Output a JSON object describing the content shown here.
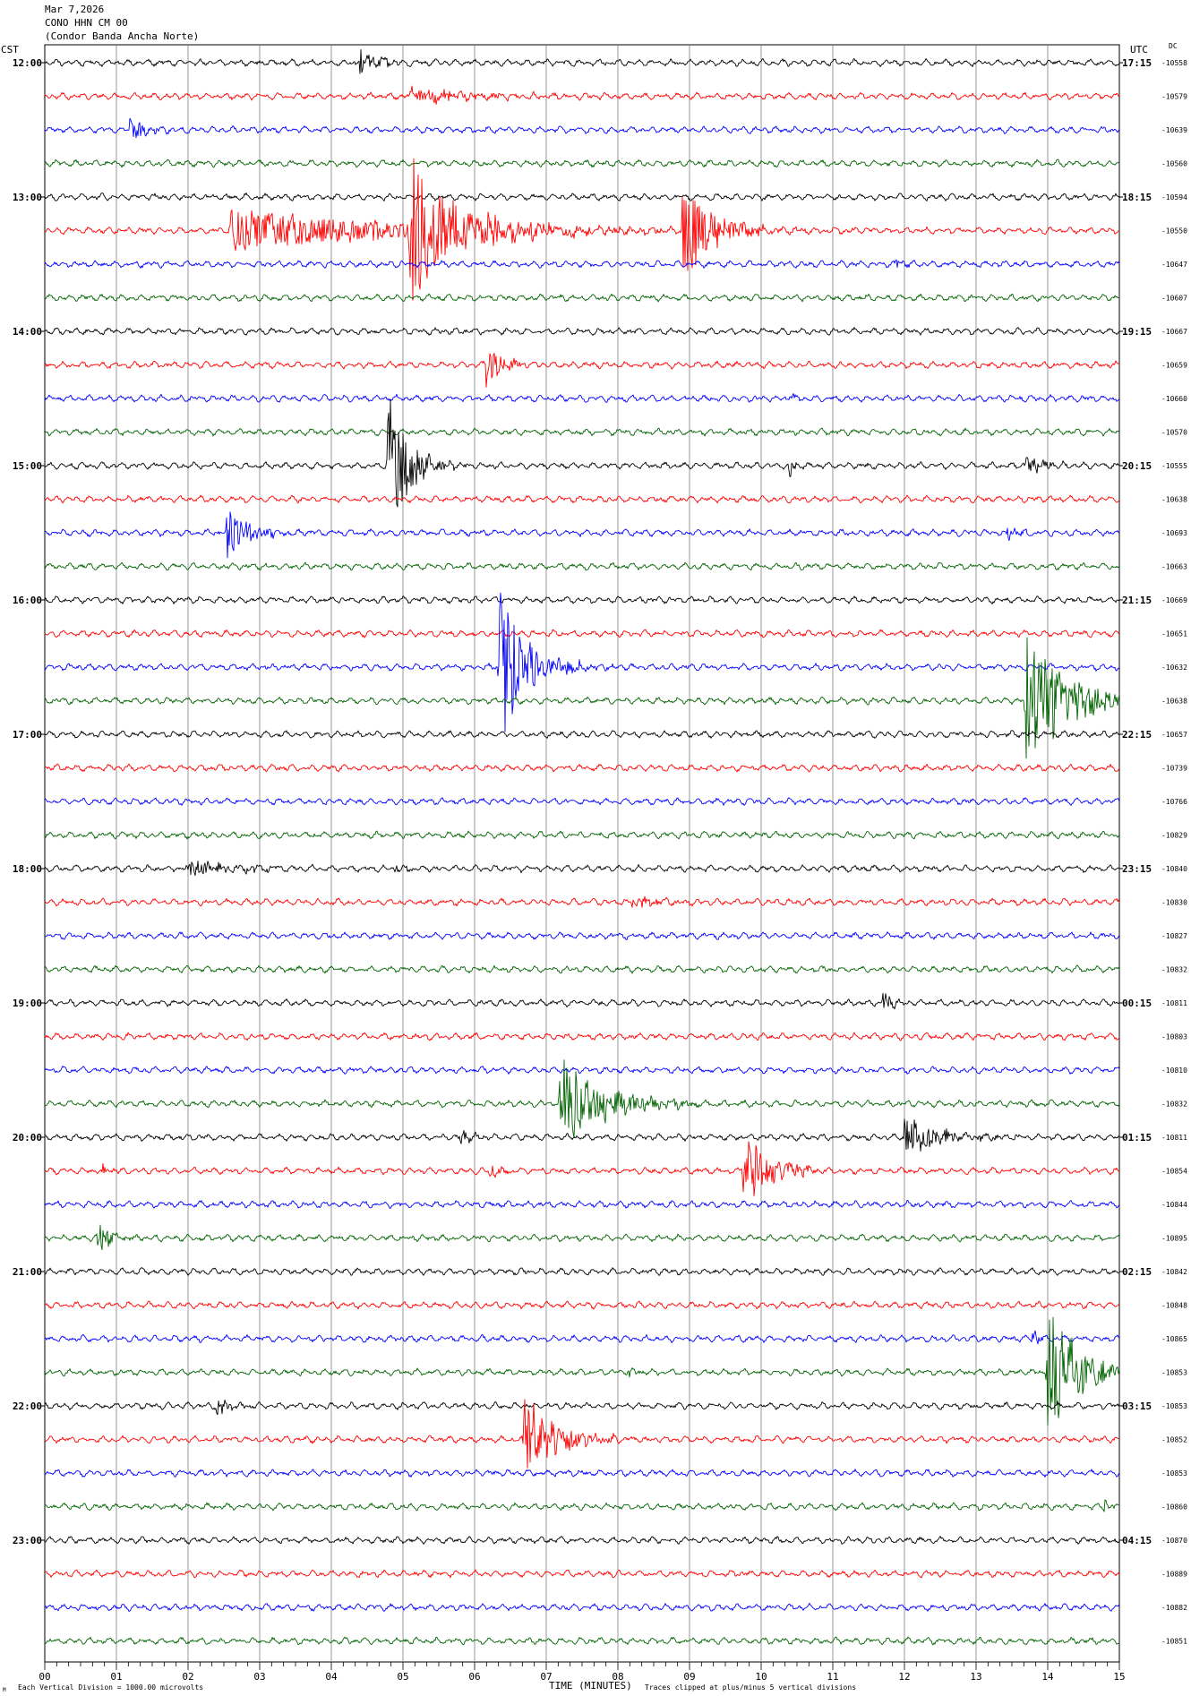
{
  "header": {
    "date": "Mar 7,2026",
    "station": "CONO HHN CM 00",
    "site": "(Condor Banda Ancha Norte)"
  },
  "left_axis_label": "CST",
  "right_axis_label": "UTC",
  "dc_label": "DC",
  "footer": {
    "scale_note": "Each Vertical Division = 1000.00 microvolts",
    "xlabel": "TIME (MINUTES)",
    "clip_note": "Traces clipped at plus/minus 5 vertical divisions",
    "corner_mark": "M"
  },
  "colors": {
    "trace_cycle": [
      "#000000",
      "#ff0000",
      "#0000ff",
      "#006400"
    ],
    "grid": "#808080",
    "frame": "#000000"
  },
  "chart_data": {
    "type": "line",
    "description_kind": "helicorder",
    "xlabel": "TIME (MINUTES)",
    "xlim": [
      0,
      15
    ],
    "x_ticks": [
      "00",
      "01",
      "02",
      "03",
      "04",
      "05",
      "06",
      "07",
      "08",
      "09",
      "10",
      "11",
      "12",
      "13",
      "14",
      "15"
    ],
    "minutes_per_line": 15,
    "line_count": 48,
    "left_hour_labels": [
      "12:00",
      "13:00",
      "14:00",
      "15:00",
      "16:00",
      "17:00",
      "18:00",
      "19:00",
      "20:00",
      "21:00",
      "22:00",
      "23:00"
    ],
    "right_hour_labels": [
      "17:15",
      "18:15",
      "19:15",
      "20:15",
      "21:15",
      "22:15",
      "23:15",
      "00:15",
      "01:15",
      "02:15",
      "03:15",
      "04:15"
    ],
    "dc_offsets": [
      "-10558",
      "-10579",
      "-10639",
      "-10560",
      "-10594",
      "-10550",
      "-10647",
      "-10607",
      "-10667",
      "-10659",
      "-10660",
      "-10570",
      "-10555",
      "-10638",
      "-10693",
      "-10663",
      "-10669",
      "-10651",
      "-10632",
      "-10638",
      "-10657",
      "-10739",
      "-10766",
      "-10829",
      "-10840",
      "-10830",
      "-10827",
      "-10832",
      "-10811",
      "-10803",
      "-10810",
      "-10832",
      "-10811",
      "-10854",
      "-10844",
      "-10895",
      "-10842",
      "-10848",
      "-10865",
      "-10853",
      "-10853",
      "-10852",
      "-10853",
      "-10860",
      "-10870",
      "-10889",
      "-10882",
      "-10851"
    ],
    "noise_level": 3.2,
    "events": [
      {
        "line": 0,
        "minute": 4.4,
        "amp": 16,
        "duration": 0.6
      },
      {
        "line": 1,
        "minute": 5.1,
        "amp": 10,
        "duration": 1.8
      },
      {
        "line": 2,
        "minute": 1.2,
        "amp": 20,
        "duration": 0.4
      },
      {
        "line": 5,
        "minute": 2.6,
        "amp": 24,
        "duration": 5.4
      },
      {
        "line": 5,
        "minute": 5.1,
        "amp": 80,
        "duration": 1.6
      },
      {
        "line": 5,
        "minute": 8.9,
        "amp": 60,
        "duration": 0.9
      },
      {
        "line": 6,
        "minute": 11.9,
        "amp": 8,
        "duration": 0.3
      },
      {
        "line": 9,
        "minute": 6.15,
        "amp": 26,
        "duration": 0.5
      },
      {
        "line": 10,
        "minute": 10.4,
        "amp": 6,
        "duration": 0.2
      },
      {
        "line": 12,
        "minute": 4.8,
        "amp": 85,
        "duration": 0.6
      },
      {
        "line": 12,
        "minute": 10.4,
        "amp": 16,
        "duration": 0.1
      },
      {
        "line": 12,
        "minute": 13.7,
        "amp": 14,
        "duration": 0.5
      },
      {
        "line": 14,
        "minute": 2.55,
        "amp": 36,
        "duration": 0.6
      },
      {
        "line": 14,
        "minute": 13.4,
        "amp": 10,
        "duration": 0.4
      },
      {
        "line": 18,
        "minute": 6.35,
        "amp": 90,
        "duration": 0.8
      },
      {
        "line": 19,
        "minute": 13.7,
        "amp": 80,
        "duration": 1.3
      },
      {
        "line": 24,
        "minute": 2.0,
        "amp": 9,
        "duration": 1.6
      },
      {
        "line": 24,
        "minute": 4.9,
        "amp": 5,
        "duration": 0.4
      },
      {
        "line": 25,
        "minute": 8.2,
        "amp": 7,
        "duration": 1.0
      },
      {
        "line": 28,
        "minute": 11.7,
        "amp": 12,
        "duration": 0.3
      },
      {
        "line": 31,
        "minute": 7.2,
        "amp": 55,
        "duration": 1.3
      },
      {
        "line": 32,
        "minute": 5.8,
        "amp": 10,
        "duration": 0.3
      },
      {
        "line": 32,
        "minute": 12.0,
        "amp": 24,
        "duration": 1.0
      },
      {
        "line": 33,
        "minute": 0.8,
        "amp": 7,
        "duration": 0.3
      },
      {
        "line": 33,
        "minute": 6.2,
        "amp": 10,
        "duration": 0.3
      },
      {
        "line": 33,
        "minute": 9.75,
        "amp": 45,
        "duration": 0.8
      },
      {
        "line": 35,
        "minute": 0.75,
        "amp": 18,
        "duration": 0.4
      },
      {
        "line": 38,
        "minute": 13.8,
        "amp": 10,
        "duration": 0.2
      },
      {
        "line": 39,
        "minute": 14.0,
        "amp": 75,
        "duration": 1.0
      },
      {
        "line": 39,
        "minute": 8.15,
        "amp": 7,
        "duration": 0.2
      },
      {
        "line": 40,
        "minute": 2.4,
        "amp": 12,
        "duration": 0.4
      },
      {
        "line": 41,
        "minute": 6.7,
        "amp": 55,
        "duration": 0.9
      },
      {
        "line": 43,
        "minute": 14.8,
        "amp": 9,
        "duration": 0.2
      }
    ]
  }
}
